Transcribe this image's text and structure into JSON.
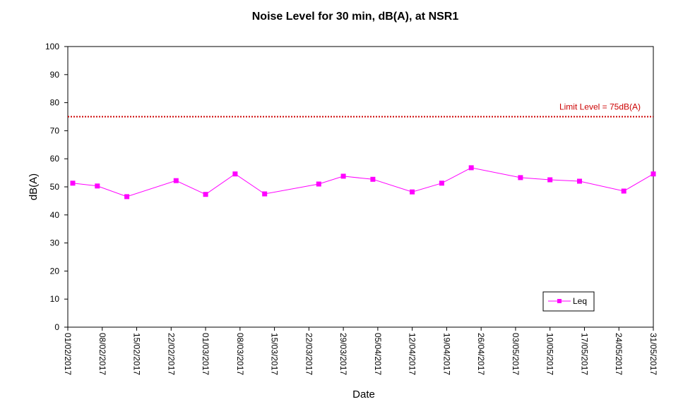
{
  "chart_data": {
    "type": "line",
    "title": "Noise Level for 30 min, dB(A), at NSR1",
    "xlabel": "Date",
    "ylabel": "dB(A)",
    "ylim": [
      0,
      100
    ],
    "yticks": [
      0,
      10,
      20,
      30,
      40,
      50,
      60,
      70,
      80,
      90,
      100
    ],
    "xlim": [
      "2017-02-01",
      "2017-05-31"
    ],
    "xtick_labels": [
      "01/02/2017",
      "08/02/2017",
      "15/02/2017",
      "22/02/2017",
      "01/03/2017",
      "08/03/2017",
      "15/03/2017",
      "22/03/2017",
      "29/03/2017",
      "05/04/2017",
      "12/04/2017",
      "19/04/2017",
      "26/04/2017",
      "03/05/2017",
      "10/05/2017",
      "17/05/2017",
      "24/05/2017",
      "31/05/2017"
    ],
    "series": [
      {
        "name": "Leq",
        "color": "#ff00ff",
        "x": [
          "2017-02-02",
          "2017-02-07",
          "2017-02-13",
          "2017-02-23",
          "2017-03-01",
          "2017-03-07",
          "2017-03-13",
          "2017-03-24",
          "2017-03-29",
          "2017-04-04",
          "2017-04-12",
          "2017-04-18",
          "2017-04-24",
          "2017-05-04",
          "2017-05-10",
          "2017-05-16",
          "2017-05-25",
          "2017-05-31"
        ],
        "values": [
          51.3,
          50.3,
          46.5,
          52.2,
          47.3,
          54.6,
          47.5,
          51.0,
          53.8,
          52.7,
          48.2,
          51.3,
          56.8,
          53.3,
          52.5,
          52.0,
          48.5,
          54.6
        ]
      }
    ],
    "limit": {
      "label": "Limit Level  = 75dB(A)",
      "value": 75,
      "color": "#cc0000"
    },
    "legend_position": "bottom-right",
    "grid": false
  }
}
